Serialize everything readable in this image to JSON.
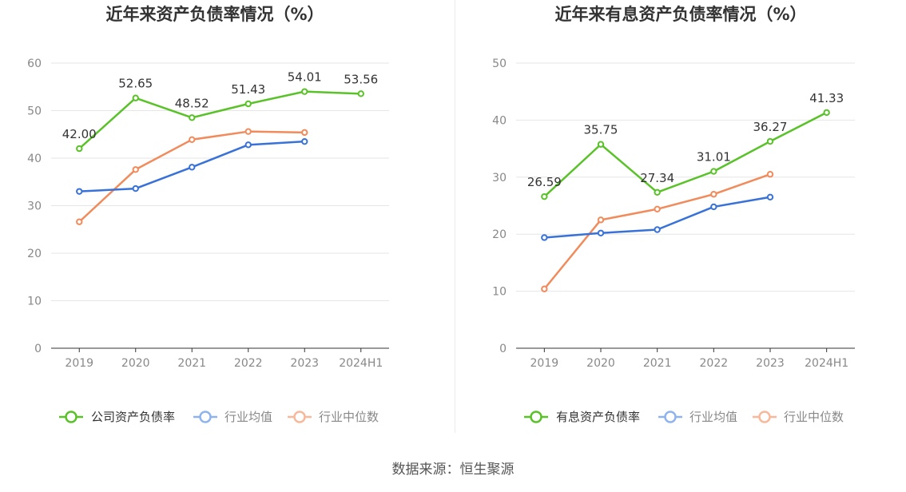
{
  "source_label": "数据来源：恒生聚源",
  "chart_data": [
    {
      "type": "line",
      "title": "近年来资产负债率情况（%）",
      "categories": [
        "2019",
        "2020",
        "2021",
        "2022",
        "2023",
        "2024H1"
      ],
      "ylim": [
        0,
        60
      ],
      "yticks": [
        0,
        10,
        20,
        30,
        40,
        50,
        60
      ],
      "grid": true,
      "legend_position": "bottom",
      "series": [
        {
          "name": "公司资产负债率",
          "color": "#5ac229",
          "values": [
            42.0,
            52.65,
            48.52,
            51.43,
            54.01,
            53.56
          ],
          "value_labels": [
            "42.00",
            "52.65",
            "48.52",
            "51.43",
            "54.01",
            "53.56"
          ]
        },
        {
          "name": "行业均值",
          "color": "#3872d8",
          "values": [
            33.0,
            33.6,
            38.1,
            42.8,
            43.5,
            null
          ]
        },
        {
          "name": "行业中位数",
          "color": "#f28b5b",
          "values": [
            26.6,
            37.6,
            43.9,
            45.6,
            45.4,
            null
          ]
        }
      ]
    },
    {
      "type": "line",
      "title": "近年来有息资产负债率情况（%）",
      "categories": [
        "2019",
        "2020",
        "2021",
        "2022",
        "2023",
        "2024H1"
      ],
      "ylim": [
        0,
        50
      ],
      "yticks": [
        0,
        10,
        20,
        30,
        40,
        50
      ],
      "grid": true,
      "legend_position": "bottom",
      "series": [
        {
          "name": "有息资产负债率",
          "color": "#5ac229",
          "values": [
            26.59,
            35.75,
            27.34,
            31.01,
            36.27,
            41.33
          ],
          "value_labels": [
            "26.59",
            "35.75",
            "27.34",
            "31.01",
            "36.27",
            "41.33"
          ]
        },
        {
          "name": "行业均值",
          "color": "#3872d8",
          "values": [
            19.4,
            20.2,
            20.8,
            24.8,
            26.5,
            null
          ]
        },
        {
          "name": "行业中位数",
          "color": "#f28b5b",
          "values": [
            10.4,
            22.5,
            24.4,
            27.0,
            30.5,
            null
          ]
        }
      ]
    }
  ]
}
